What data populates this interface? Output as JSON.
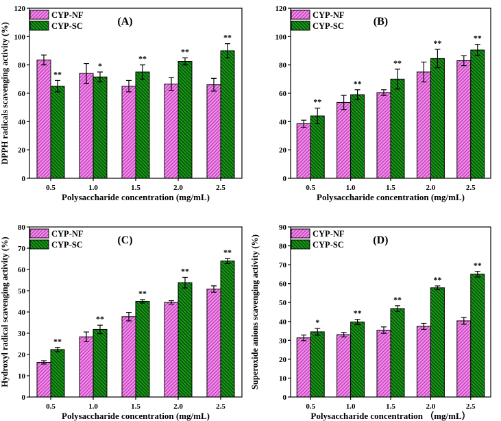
{
  "style": {
    "background": "#ffffff",
    "nf_fill": "#F48FE8",
    "nf_hatch": "#BE3FBE",
    "sc_fill": "#169616",
    "sc_hatch": "#053805",
    "axis_color": "#000000",
    "error_bar_color": "#000000"
  },
  "legend": {
    "nf_label": "CYP-NF",
    "sc_label": "CYP-SC",
    "position": "top-left"
  },
  "chart_data": [
    {
      "type": "bar",
      "panel_label": "(A)",
      "categories": [
        "0.5",
        "1.0",
        "1.5",
        "2.0",
        "2.5"
      ],
      "series": [
        {
          "name": "CYP-NF",
          "values": [
            83.5,
            74.0,
            65.0,
            66.5,
            66.0
          ],
          "errors": [
            3.5,
            7.0,
            4.0,
            4.5,
            4.5
          ],
          "significance": [
            "",
            "",
            "",
            "",
            ""
          ]
        },
        {
          "name": "CYP-SC",
          "values": [
            65.0,
            71.5,
            75.0,
            82.5,
            90.0
          ],
          "errors": [
            4.0,
            3.5,
            5.0,
            2.5,
            5.0
          ],
          "significance": [
            "**",
            "*",
            "**",
            "**",
            "**"
          ]
        }
      ],
      "xlabel": "Polysaccharide concentration (mg/mL)",
      "ylabel": "DPPH radicals scavenging activity (%)",
      "ylim": [
        0,
        120
      ],
      "ytick_step": 20,
      "grid": false,
      "legend_position": "top-left"
    },
    {
      "type": "bar",
      "panel_label": "(B)",
      "categories": [
        "0.5",
        "1.0",
        "1.5",
        "2.0",
        "2.5"
      ],
      "series": [
        {
          "name": "CYP-NF",
          "values": [
            38.5,
            53.5,
            60.5,
            75.0,
            83.0
          ],
          "errors": [
            2.5,
            5.0,
            2.0,
            7.0,
            3.5
          ],
          "significance": [
            "",
            "",
            "",
            "",
            ""
          ]
        },
        {
          "name": "CYP-SC",
          "values": [
            44.0,
            59.0,
            70.0,
            84.5,
            90.5
          ],
          "errors": [
            5.5,
            3.5,
            7.0,
            6.5,
            4.0
          ],
          "significance": [
            "**",
            "**",
            "**",
            "**",
            "**"
          ]
        }
      ],
      "xlabel": "Polysaccharide concentration (mg/mL)",
      "ylabel": "",
      "ylim": [
        0,
        120
      ],
      "ytick_step": 20,
      "grid": false,
      "legend_position": "top-left"
    },
    {
      "type": "bar",
      "panel_label": "(C)",
      "categories": [
        "0.5",
        "1.0",
        "1.5",
        "2.0",
        "2.5"
      ],
      "series": [
        {
          "name": "CYP-NF",
          "values": [
            16.3,
            28.3,
            37.8,
            44.5,
            50.8
          ],
          "errors": [
            0.8,
            2.3,
            2.0,
            0.8,
            1.5
          ],
          "significance": [
            "",
            "",
            "",
            "",
            ""
          ]
        },
        {
          "name": "CYP-SC",
          "values": [
            22.3,
            31.8,
            45.0,
            53.8,
            64.0
          ],
          "errors": [
            1.0,
            2.0,
            0.8,
            2.5,
            1.2
          ],
          "significance": [
            "**",
            "**",
            "**",
            "**",
            "**"
          ]
        }
      ],
      "xlabel": "Polysaccharide concentration (mg/mL)",
      "ylabel": "Hydroxyl radical scavenging activity (%)",
      "ylim": [
        0,
        80
      ],
      "ytick_step": 10,
      "grid": false,
      "legend_position": "top-left"
    },
    {
      "type": "bar",
      "panel_label": "(D)",
      "categories": [
        "0.5",
        "1.0",
        "1.5",
        "2.0",
        "2.5"
      ],
      "series": [
        {
          "name": "CYP-NF",
          "values": [
            31.3,
            33.0,
            35.4,
            37.4,
            40.3
          ],
          "errors": [
            1.5,
            1.2,
            1.7,
            1.6,
            1.8
          ],
          "significance": [
            "",
            "",
            "",
            "",
            ""
          ]
        },
        {
          "name": "CYP-SC",
          "values": [
            34.5,
            39.7,
            46.8,
            57.8,
            65.0
          ],
          "errors": [
            1.8,
            1.4,
            1.5,
            1.0,
            1.5
          ],
          "significance": [
            "*",
            "**",
            "**",
            "**",
            "**"
          ]
        }
      ],
      "xlabel": "Polysaccharide concentration （mg/mL）",
      "ylabel": "Superoxide anions scavenging activity (%)",
      "ylim": [
        0,
        90
      ],
      "ytick_step": 10,
      "grid": false,
      "legend_position": "top-left"
    }
  ]
}
